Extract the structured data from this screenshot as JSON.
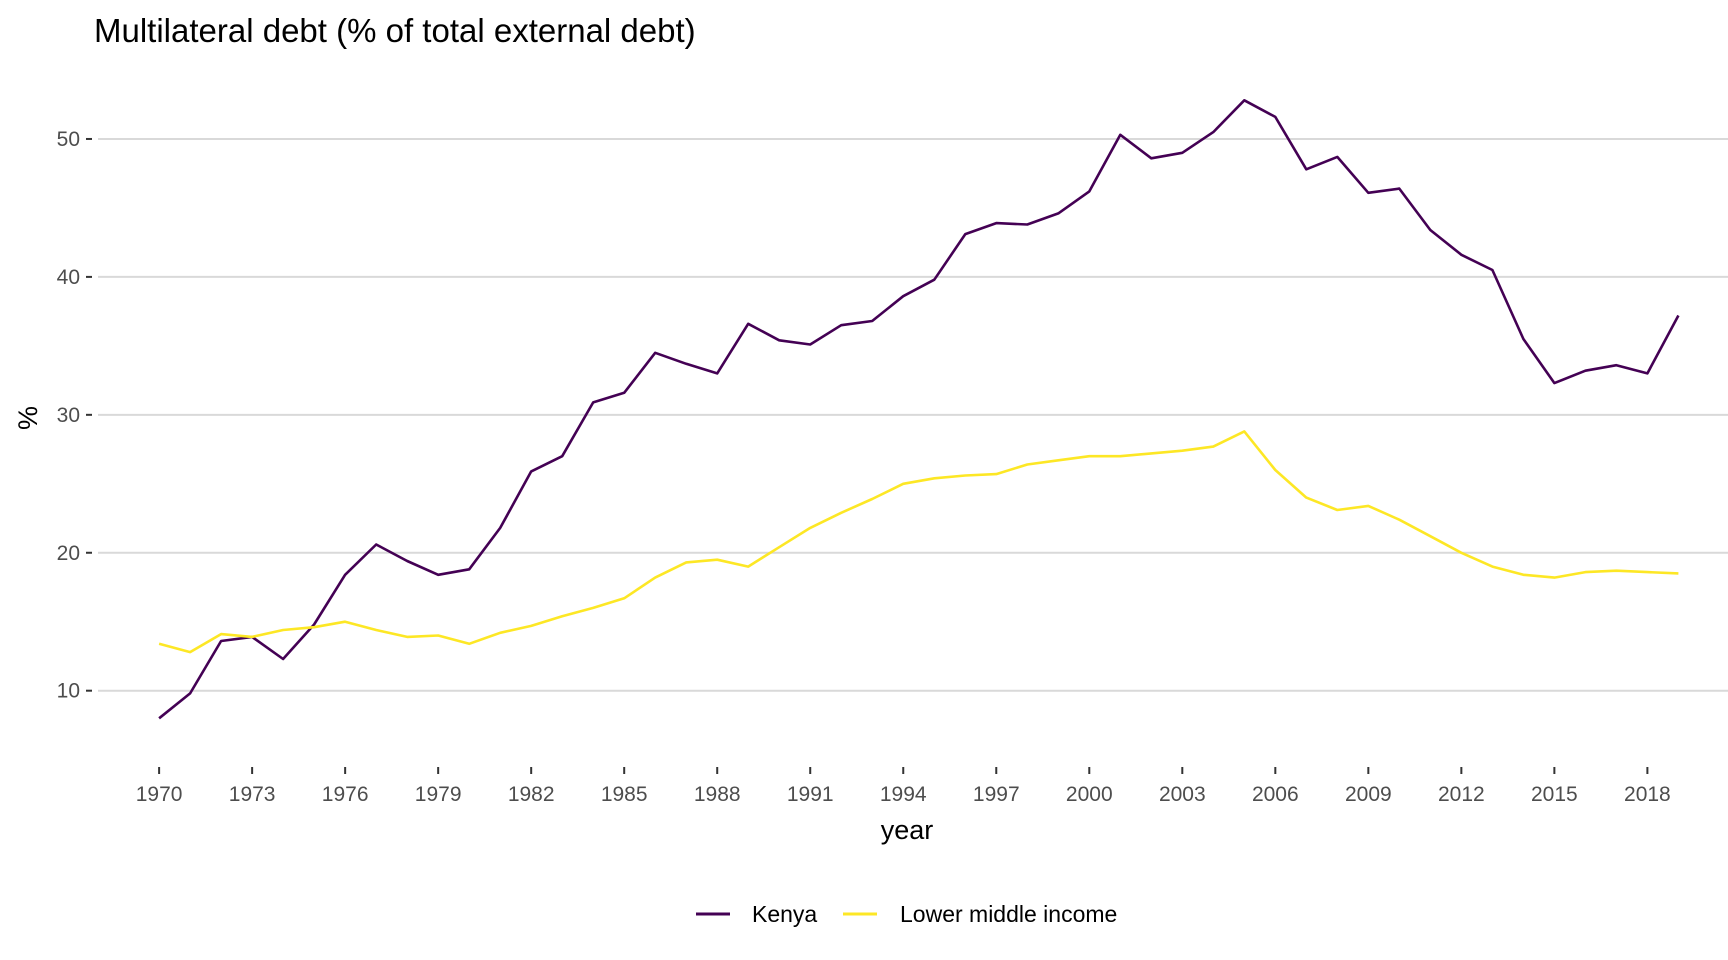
{
  "chart_data": {
    "type": "line",
    "title": "Multilateral debt (% of total external debt)",
    "xlabel": "year",
    "ylabel": "%",
    "x": [
      1970,
      1971,
      1972,
      1973,
      1974,
      1975,
      1976,
      1977,
      1978,
      1979,
      1980,
      1981,
      1982,
      1983,
      1984,
      1985,
      1986,
      1987,
      1988,
      1989,
      1990,
      1991,
      1992,
      1993,
      1994,
      1995,
      1996,
      1997,
      1998,
      1999,
      2000,
      2001,
      2002,
      2003,
      2004,
      2005,
      2006,
      2007,
      2008,
      2009,
      2010,
      2011,
      2012,
      2013,
      2014,
      2015,
      2016,
      2017,
      2018,
      2019
    ],
    "x_ticks": [
      1970,
      1973,
      1976,
      1979,
      1982,
      1985,
      1988,
      1991,
      1994,
      1997,
      2000,
      2003,
      2006,
      2009,
      2012,
      2015,
      2018
    ],
    "x_tick_labels": [
      "1970",
      "1973",
      "1976",
      "1979",
      "1982",
      "1985",
      "1988",
      "1991",
      "1994",
      "1997",
      "2000",
      "2003",
      "2006",
      "2009",
      "2012",
      "2015",
      "2018"
    ],
    "y_ticks": [
      10,
      20,
      30,
      40,
      50
    ],
    "y_tick_labels": [
      "10",
      "20",
      "30",
      "40",
      "50"
    ],
    "xlim": [
      1967.9,
      2020.6
    ],
    "ylim": [
      5.7,
      55
    ],
    "grid": "horizontal",
    "legend_position": "bottom",
    "series": [
      {
        "name": "Kenya",
        "color": "#440154",
        "values": [
          8.0,
          9.8,
          13.6,
          13.9,
          12.3,
          14.8,
          18.4,
          20.6,
          19.4,
          18.4,
          18.8,
          21.8,
          25.9,
          27.0,
          30.9,
          31.6,
          34.5,
          33.7,
          33.0,
          36.6,
          35.4,
          35.1,
          36.5,
          36.8,
          38.6,
          39.8,
          43.1,
          43.9,
          43.8,
          44.6,
          46.2,
          50.3,
          48.6,
          49.0,
          50.5,
          52.8,
          51.6,
          47.8,
          48.7,
          46.1,
          46.4,
          43.4,
          41.6,
          40.5,
          35.5,
          32.3,
          33.2,
          33.6,
          33.0,
          37.2
        ]
      },
      {
        "name": "Lower middle income",
        "color": "#FDE725",
        "values": [
          13.4,
          12.8,
          14.1,
          13.9,
          14.4,
          14.6,
          15.0,
          14.4,
          13.9,
          14.0,
          13.4,
          14.2,
          14.7,
          15.4,
          16.0,
          16.7,
          18.2,
          19.3,
          19.5,
          19.0,
          20.4,
          21.8,
          22.9,
          23.9,
          25.0,
          25.4,
          25.6,
          25.7,
          26.4,
          26.7,
          27.0,
          27.0,
          27.2,
          27.4,
          27.7,
          28.8,
          26.0,
          24.0,
          23.1,
          23.4,
          22.4,
          21.2,
          20.0,
          19.0,
          18.4,
          18.2,
          18.6,
          18.7,
          18.6,
          18.5
        ]
      }
    ]
  }
}
